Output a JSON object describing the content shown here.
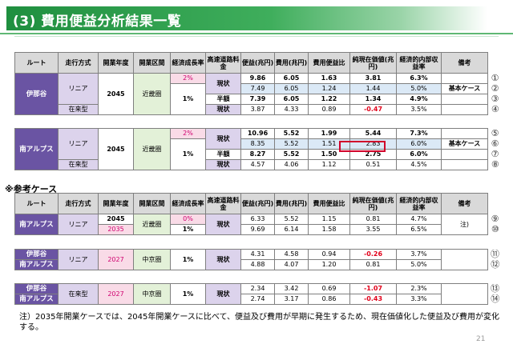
{
  "title": "(3) 費用便益分析結果一覧",
  "headers": {
    "route": "ルート",
    "mode": "走行方式",
    "year": "開業年度",
    "section": "開業区間",
    "growth": "経済成長率",
    "toll": "高速道路料金",
    "benefit": "便益(兆円)",
    "cost": "費用(兆円)",
    "bcr": "費用便益比",
    "npv": "純現在価値(兆円)",
    "eirr": "経済的内部収益率",
    "remarks": "備考"
  },
  "table1": {
    "route": "伊那谷",
    "linear": "リニア",
    "conventional": "在来型",
    "year": "2045",
    "section": "近畿圏",
    "rows": [
      {
        "growth": "2%",
        "toll": "現状",
        "benefit": "9.86",
        "cost": "6.05",
        "bcr": "1.63",
        "npv": "3.81",
        "eirr": "6.3%",
        "remark": "",
        "num": "①"
      },
      {
        "growth": "1%",
        "toll": "",
        "benefit": "7.49",
        "cost": "6.05",
        "bcr": "1.24",
        "npv": "1.44",
        "eirr": "5.0%",
        "remark": "基本ケース",
        "num": "②"
      },
      {
        "growth": "",
        "toll": "半額",
        "benefit": "7.39",
        "cost": "6.05",
        "bcr": "1.22",
        "npv": "1.34",
        "eirr": "4.9%",
        "remark": "",
        "num": "③"
      },
      {
        "growth": "",
        "toll": "現状",
        "benefit": "3.87",
        "cost": "4.33",
        "bcr": "0.89",
        "npv": "-0.47",
        "eirr": "3.5%",
        "remark": "",
        "num": "④"
      }
    ]
  },
  "table2": {
    "route": "南アルプス",
    "linear": "リニア",
    "conventional": "在来型",
    "year": "2045",
    "section": "近畿圏",
    "rows": [
      {
        "growth": "2%",
        "toll": "現状",
        "benefit": "10.96",
        "cost": "5.52",
        "bcr": "1.99",
        "npv": "5.44",
        "eirr": "7.3%",
        "remark": "",
        "num": "⑤"
      },
      {
        "growth": "1%",
        "toll": "",
        "benefit": "8.35",
        "cost": "5.52",
        "bcr": "1.51",
        "npv": "2.83",
        "eirr": "6.0%",
        "remark": "基本ケース",
        "num": "⑥"
      },
      {
        "growth": "",
        "toll": "半額",
        "benefit": "8.27",
        "cost": "5.52",
        "bcr": "1.50",
        "npv": "2.75",
        "eirr": "6.0%",
        "remark": "",
        "num": "⑦"
      },
      {
        "growth": "",
        "toll": "現状",
        "benefit": "4.57",
        "cost": "4.06",
        "bcr": "1.12",
        "npv": "0.51",
        "eirr": "4.5%",
        "remark": "",
        "num": "⑧"
      }
    ]
  },
  "section_title": "※参考ケース",
  "ref1": {
    "route": "南アルプス",
    "mode": "リニア",
    "section": "近畿圏",
    "growth": "1%",
    "toll": "現状",
    "remark": "注)",
    "rows": [
      {
        "year": "2045",
        "growth_top": "0%",
        "benefit": "6.33",
        "cost": "5.52",
        "bcr": "1.15",
        "npv": "0.81",
        "eirr": "4.7%",
        "num": "⑨"
      },
      {
        "year": "2035",
        "benefit": "9.69",
        "cost": "6.14",
        "bcr": "1.58",
        "npv": "3.55",
        "eirr": "6.5%",
        "num": "⑩"
      }
    ]
  },
  "ref2": {
    "mode": "リニア",
    "year": "2027",
    "section": "中京圏",
    "growth": "1%",
    "toll": "現状",
    "rows": [
      {
        "route": "伊那谷",
        "benefit": "4.31",
        "cost": "4.58",
        "bcr": "0.94",
        "npv": "-0.26",
        "eirr": "3.7%",
        "num": "⑪"
      },
      {
        "route": "南アルプス",
        "benefit": "4.88",
        "cost": "4.07",
        "bcr": "1.20",
        "npv": "0.81",
        "eirr": "5.0%",
        "num": "⑫"
      }
    ]
  },
  "ref3": {
    "mode": "在来型",
    "year": "2027",
    "section": "中京圏",
    "growth": "1%",
    "toll": "現状",
    "rows": [
      {
        "route": "伊那谷",
        "benefit": "2.34",
        "cost": "3.42",
        "bcr": "0.69",
        "npv": "-1.07",
        "eirr": "2.3%",
        "num": "⑬"
      },
      {
        "route": "南アルプス",
        "benefit": "2.74",
        "cost": "3.17",
        "bcr": "0.86",
        "npv": "-0.43",
        "eirr": "3.3%",
        "num": "⑭"
      }
    ]
  },
  "footnote": "注）2035年開業ケースでは、2045年開業ケースに比べて、便益及び費用が早期に発生するため、現在価値化した便益及び費用が変化する。",
  "page_number": "21"
}
